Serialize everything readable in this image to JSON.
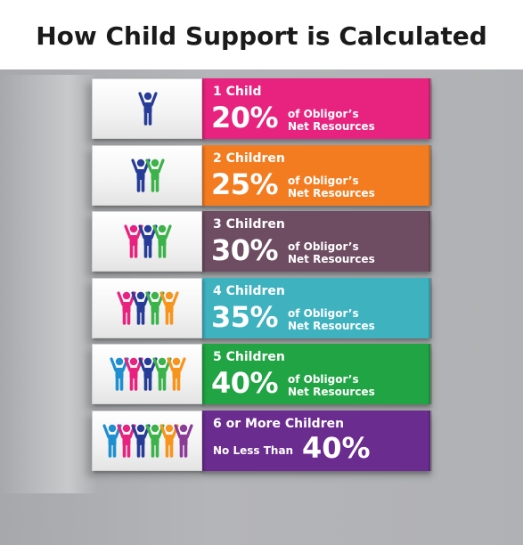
{
  "title": "How Child Support is Calculated",
  "rows": [
    {
      "count": "1 Child",
      "percent": "20%",
      "desc_line1": "of Obligor’s",
      "desc_line2": "Net Resources",
      "color": "#e8237f",
      "figures": [
        "#263c97"
      ]
    },
    {
      "count": "2 Children",
      "percent": "25%",
      "desc_line1": "of Obligor’s",
      "desc_line2": "Net Resources",
      "color": "#f47c20",
      "figures": [
        "#263c97",
        "#3bb34a"
      ]
    },
    {
      "count": "3 Children",
      "percent": "30%",
      "desc_line1": "of Obligor’s",
      "desc_line2": "Net Resources",
      "color": "#6e4d63",
      "figures": [
        "#e8237f",
        "#263c97",
        "#3bb34a"
      ]
    },
    {
      "count": "4 Children",
      "percent": "35%",
      "desc_line1": "of Obligor’s",
      "desc_line2": "Net Resources",
      "color": "#3fb2c0",
      "figures": [
        "#e8237f",
        "#263c97",
        "#3bb34a",
        "#f7941d"
      ]
    },
    {
      "count": "5 Children",
      "percent": "40%",
      "desc_line1": "of Obligor’s",
      "desc_line2": "Net Resources",
      "color": "#21a443",
      "figures": [
        "#1f8fd1",
        "#e8237f",
        "#263c97",
        "#3bb34a",
        "#f7941d"
      ]
    },
    {
      "count": "6 or More Children",
      "prefix": "No Less Than",
      "percent": "40%",
      "color": "#6b2c90",
      "figures": [
        "#1f8fd1",
        "#e8237f",
        "#263c97",
        "#3bb34a",
        "#f7941d",
        "#8a3c97"
      ]
    }
  ]
}
